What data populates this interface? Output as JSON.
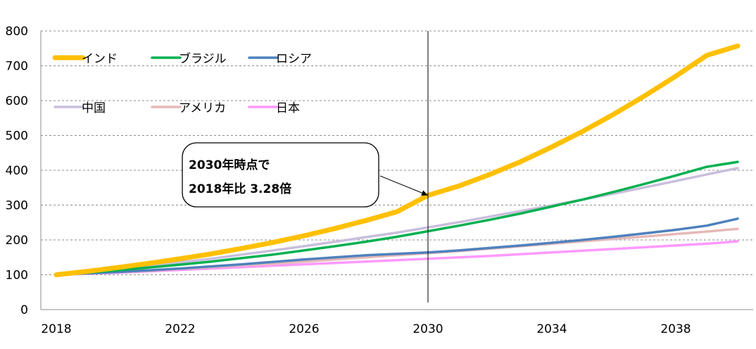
{
  "chart_data": {
    "type": "line",
    "x": [
      2018,
      2019,
      2020,
      2021,
      2022,
      2023,
      2024,
      2025,
      2026,
      2027,
      2028,
      2029,
      2030,
      2031,
      2032,
      2033,
      2034,
      2035,
      2036,
      2037,
      2038,
      2039,
      2040
    ],
    "xticks": [
      "2018",
      "2022",
      "2026",
      "2030",
      "2034",
      "2038"
    ],
    "yticks": [
      "0",
      "100",
      "200",
      "300",
      "400",
      "500",
      "600",
      "700",
      "800"
    ],
    "xlim": [
      2017.5,
      2040.5
    ],
    "ylim": [
      0,
      800
    ],
    "grid": "horizontal dashed",
    "series": [
      {
        "name": "インド",
        "color": "#FFC000",
        "values": [
          100,
          110,
          121,
          133,
          146,
          160,
          176,
          193,
          212,
          233,
          256,
          281,
          328,
          355,
          388,
          425,
          467,
          512,
          561,
          614,
          670,
          730,
          757
        ]
      },
      {
        "name": "ブラジル",
        "color": "#00B050",
        "values": [
          100,
          106,
          113,
          121,
          129,
          138,
          148,
          158,
          170,
          182,
          195,
          209,
          225,
          241,
          258,
          276,
          296,
          316,
          338,
          361,
          385,
          410,
          424
        ]
      },
      {
        "name": "ロシア",
        "color": "#4F81BD",
        "values": [
          100,
          104,
          108,
          113,
          118,
          124,
          130,
          137,
          144,
          150,
          156,
          160,
          164,
          170,
          177,
          184,
          192,
          200,
          209,
          219,
          229,
          241,
          261
        ]
      },
      {
        "name": "中国",
        "color": "#C9BEDC",
        "values": [
          100,
          108,
          117,
          126,
          136,
          146,
          158,
          170,
          182,
          195,
          208,
          221,
          236,
          251,
          267,
          283,
          299,
          316,
          333,
          351,
          369,
          388,
          406
        ]
      },
      {
        "name": "アメリカ",
        "color": "#E6B9B8",
        "values": [
          100,
          104,
          108,
          112,
          117,
          122,
          127,
          132,
          138,
          144,
          150,
          156,
          162,
          168,
          175,
          182,
          189,
          196,
          203,
          210,
          217,
          224,
          232
        ]
      },
      {
        "name": "日本",
        "color": "#FF99FF",
        "values": [
          100,
          103,
          106,
          110,
          114,
          118,
          122,
          126,
          130,
          134,
          138,
          142,
          146,
          150,
          154,
          159,
          164,
          169,
          174,
          179,
          184,
          189,
          196
        ]
      }
    ],
    "marker_line_x": 2030,
    "annotation": {
      "line1": "2030年時点で",
      "line2": "2018年比  3.28倍",
      "point_x": 2030,
      "point_y": 328
    }
  }
}
